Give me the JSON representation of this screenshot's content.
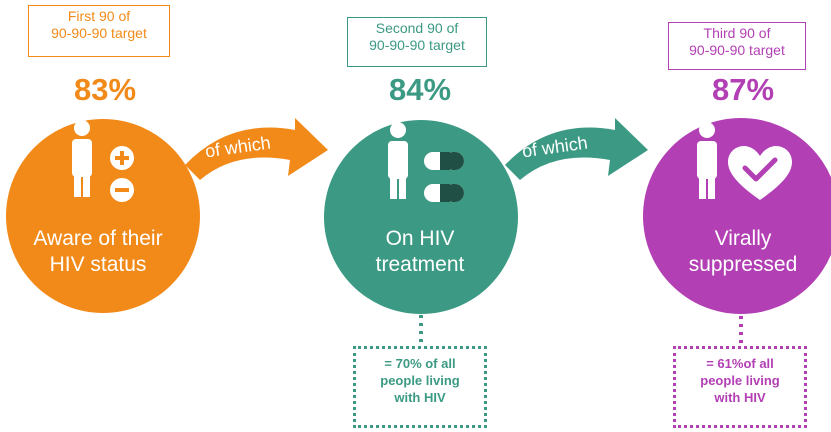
{
  "steps": [
    {
      "target_line1": "First 90 of",
      "target_line2": "90-90-90 target",
      "percent": "83%",
      "label_line1": "Aware of their",
      "label_line2": "HIV status",
      "color": "#f28a1a"
    },
    {
      "target_line1": "Second 90 of",
      "target_line2": "90-90-90 target",
      "percent": "84%",
      "label_line1": "On HIV",
      "label_line2": "treatment",
      "color": "#3c9a84"
    },
    {
      "target_line1": "Third 90 of",
      "target_line2": "90-90-90 target",
      "percent": "87%",
      "label_line1": "Virally",
      "label_line2": "suppressed",
      "color": "#b23fb4"
    }
  ],
  "connectors": [
    {
      "text": "of which",
      "color": "#f28a1a"
    },
    {
      "text": "of which",
      "color": "#3c9a84"
    }
  ],
  "notes": [
    {
      "line1": "= 70% of all",
      "line2": "people living",
      "line3": "with HIV",
      "color": "#3c9a84"
    },
    {
      "line1": "= 61%of all",
      "line2": "people living",
      "line3": "with HIV",
      "color": "#b23fb4"
    }
  ],
  "icons": [
    "person-icon",
    "plus-icon",
    "minus-icon",
    "pill-icon",
    "heart-check-icon"
  ]
}
